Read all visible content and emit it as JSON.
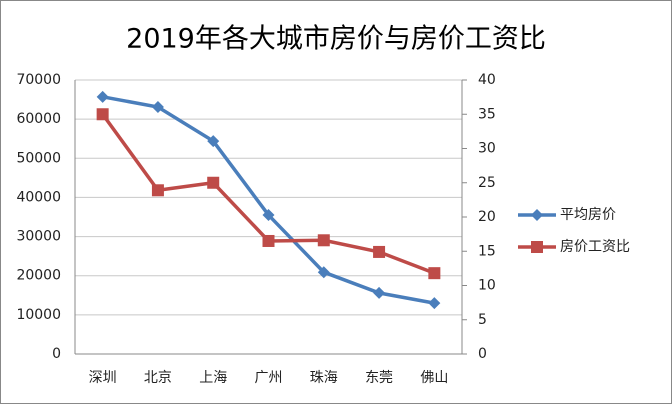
{
  "chart_data": {
    "type": "line",
    "title": "2019年各大城市房价与房价工资比",
    "categories": [
      "深圳",
      "北京",
      "上海",
      "广州",
      "珠海",
      "东莞",
      "佛山"
    ],
    "series": [
      {
        "name": "平均房价",
        "color": "#4a7ebb",
        "marker": "diamond",
        "values": [
          65700,
          63100,
          54400,
          35500,
          20900,
          15600,
          13000
        ]
      },
      {
        "name": "房价工资比",
        "color": "#be4b48",
        "marker": "square",
        "axis": "y2",
        "values": [
          35.0,
          23.9,
          25.0,
          16.5,
          16.6,
          14.9,
          11.8
        ]
      }
    ],
    "ylim": [
      0,
      70000
    ],
    "yticks": [
      0,
      10000,
      20000,
      30000,
      40000,
      50000,
      60000,
      70000
    ],
    "y2lim": [
      0,
      40
    ],
    "y2ticks": [
      0,
      5,
      10,
      15,
      20,
      25,
      30,
      35,
      40
    ],
    "grid": true,
    "legend": "right"
  }
}
